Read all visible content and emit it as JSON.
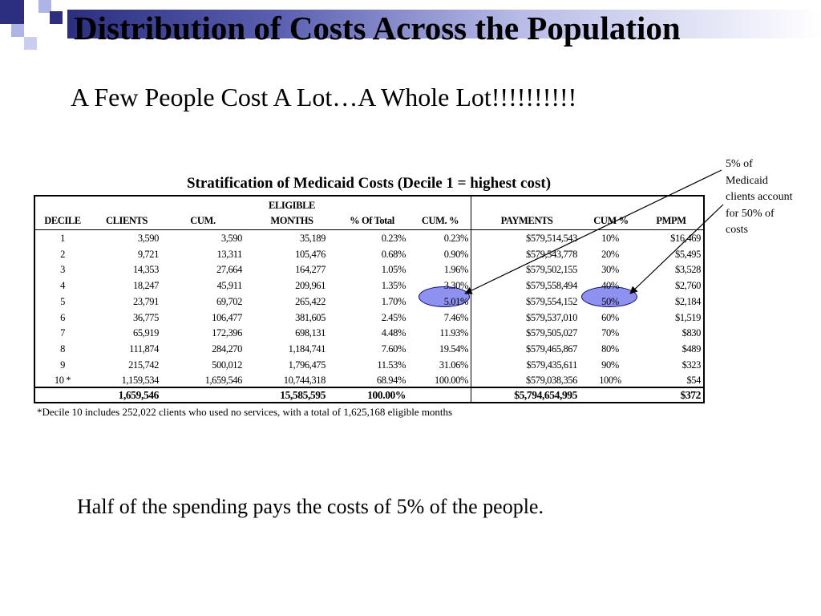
{
  "slide": {
    "title": "Distribution of Costs Across the Population",
    "subtitle": "A Few People Cost A Lot…A Whole Lot!!!!!!!!!!",
    "bottom_text": "Half of the spending pays the costs of 5% of the people.",
    "callout_lines": [
      "5% of",
      "Medicaid",
      "clients account",
      "for 50% of",
      "costs"
    ]
  },
  "table": {
    "title": "Stratification of Medicaid Costs (Decile 1 = highest cost)",
    "headers": {
      "decile": "DECILE",
      "clients": "CLIENTS",
      "cum": "CUM.",
      "eligible_top": "ELIGIBLE",
      "eligible_bottom": "MONTHS",
      "pct_total": "%  Of Total",
      "cum_pct": "CUM. %",
      "payments": "PAYMENTS",
      "cum_pct2": "CUM %",
      "pmpm": "PMPM"
    },
    "rows": [
      {
        "decile": "1",
        "clients": "3,590",
        "cum": "3,590",
        "months": "35,189",
        "pct": "0.23%",
        "cum_pct": "0.23%",
        "payments": "$579,514,543",
        "cum_pay": "10%",
        "pmpm": "$16,469"
      },
      {
        "decile": "2",
        "clients": "9,721",
        "cum": "13,311",
        "months": "105,476",
        "pct": "0.68%",
        "cum_pct": "0.90%",
        "payments": "$579,543,778",
        "cum_pay": "20%",
        "pmpm": "$5,495"
      },
      {
        "decile": "3",
        "clients": "14,353",
        "cum": "27,664",
        "months": "164,277",
        "pct": "1.05%",
        "cum_pct": "1.96%",
        "payments": "$579,502,155",
        "cum_pay": "30%",
        "pmpm": "$3,528"
      },
      {
        "decile": "4",
        "clients": "18,247",
        "cum": "45,911",
        "months": "209,961",
        "pct": "1.35%",
        "cum_pct": "3.30%",
        "payments": "$579,558,494",
        "cum_pay": "40%",
        "pmpm": "$2,760"
      },
      {
        "decile": "5",
        "clients": "23,791",
        "cum": "69,702",
        "months": "265,422",
        "pct": "1.70%",
        "cum_pct": "5.01%",
        "payments": "$579,554,152",
        "cum_pay": "50%",
        "pmpm": "$2,184"
      },
      {
        "decile": "6",
        "clients": "36,775",
        "cum": "106,477",
        "months": "381,605",
        "pct": "2.45%",
        "cum_pct": "7.46%",
        "payments": "$579,537,010",
        "cum_pay": "60%",
        "pmpm": "$1,519"
      },
      {
        "decile": "7",
        "clients": "65,919",
        "cum": "172,396",
        "months": "698,131",
        "pct": "4.48%",
        "cum_pct": "11.93%",
        "payments": "$579,505,027",
        "cum_pay": "70%",
        "pmpm": "$830"
      },
      {
        "decile": "8",
        "clients": "111,874",
        "cum": "284,270",
        "months": "1,184,741",
        "pct": "7.60%",
        "cum_pct": "19.54%",
        "payments": "$579,465,867",
        "cum_pay": "80%",
        "pmpm": "$489"
      },
      {
        "decile": "9",
        "clients": "215,742",
        "cum": "500,012",
        "months": "1,796,475",
        "pct": "11.53%",
        "cum_pct": "31.06%",
        "payments": "$579,435,611",
        "cum_pay": "90%",
        "pmpm": "$323"
      },
      {
        "decile": "10 *",
        "clients": "1,159,534",
        "cum": "1,659,546",
        "months": "10,744,318",
        "pct": "68.94%",
        "cum_pct": "100.00%",
        "payments": "$579,038,356",
        "cum_pay": "100%",
        "pmpm": "$54"
      }
    ],
    "totals": {
      "clients": "1,659,546",
      "months": "15,585,595",
      "pct": "100.00%",
      "payments": "$5,794,654,995",
      "pmpm": "$372"
    },
    "footnote": "*Decile 10 includes 252,022 clients who used no services, with a total of 1,625,168 eligible months"
  },
  "colors": {
    "accent_dark": "#2b2f7e",
    "accent_light": "#aeb4e6",
    "highlight": "#8f91f0"
  }
}
